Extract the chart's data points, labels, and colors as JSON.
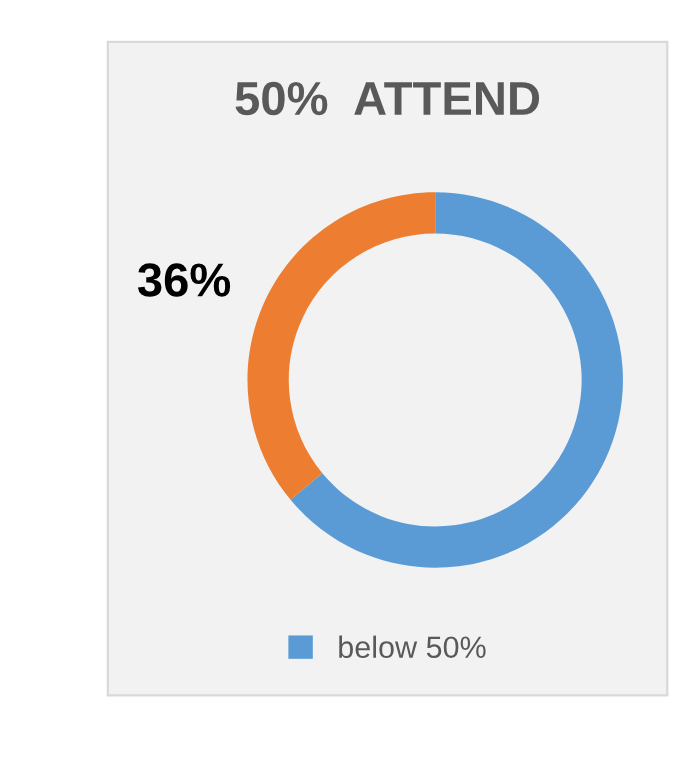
{
  "chart_data": {
    "type": "donut",
    "title": "50%  ATTEND",
    "categories": [
      "below 50%",
      null
    ],
    "values": [
      64,
      36
    ],
    "colors": [
      "#5b9bd5",
      "#ed7d31"
    ],
    "value_labels": [
      null,
      "36%"
    ],
    "legend": "bottom"
  }
}
